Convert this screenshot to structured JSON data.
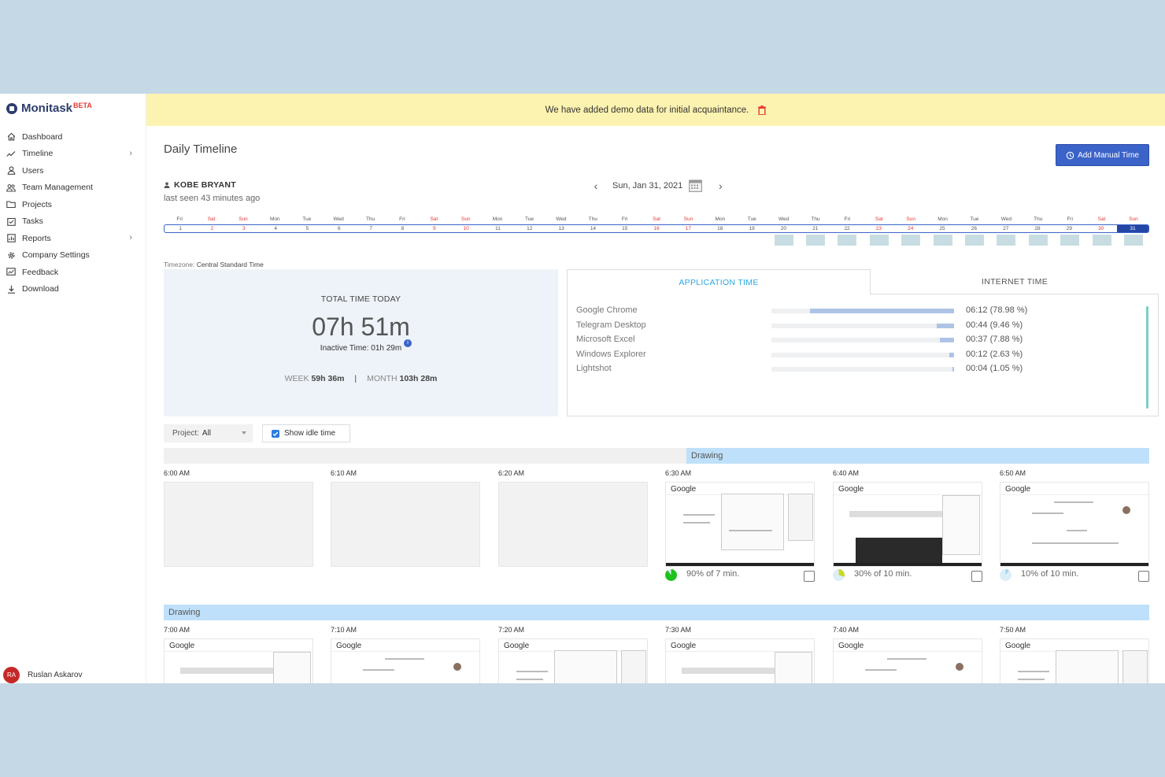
{
  "brand": {
    "name": "Monitask",
    "badge": "BETA"
  },
  "sidebar": {
    "items": [
      {
        "label": "Dashboard",
        "icon": "home-icon",
        "has_chevron": false
      },
      {
        "label": "Timeline",
        "icon": "trend-icon",
        "has_chevron": true
      },
      {
        "label": "Users",
        "icon": "user-icon",
        "has_chevron": false
      },
      {
        "label": "Team Management",
        "icon": "team-icon",
        "has_chevron": false
      },
      {
        "label": "Projects",
        "icon": "folder-icon",
        "has_chevron": false
      },
      {
        "label": "Tasks",
        "icon": "tasks-icon",
        "has_chevron": false
      },
      {
        "label": "Reports",
        "icon": "reports-icon",
        "has_chevron": true
      },
      {
        "label": "Company Settings",
        "icon": "gear-icon",
        "has_chevron": false
      },
      {
        "label": "Feedback",
        "icon": "feedback-icon",
        "has_chevron": false
      },
      {
        "label": "Download",
        "icon": "download-icon",
        "has_chevron": false
      }
    ],
    "user": {
      "initials": "RA",
      "name": "Ruslan Askarov"
    }
  },
  "banner": {
    "text": "We have added demo data for initial acquaintance."
  },
  "header": {
    "title": "Daily Timeline",
    "add_manual_label": "Add Manual Time"
  },
  "employee": {
    "name": "KOBE BRYANT",
    "last_seen": "last seen 43 minutes ago"
  },
  "date_nav": {
    "label": "Sun, Jan 31, 2021"
  },
  "days": [
    {
      "dow": "Fri",
      "num": "1",
      "weekend": false,
      "active": false
    },
    {
      "dow": "Sat",
      "num": "2",
      "weekend": true,
      "active": false
    },
    {
      "dow": "Sun",
      "num": "3",
      "weekend": true,
      "active": false
    },
    {
      "dow": "Mon",
      "num": "4",
      "weekend": false,
      "active": false
    },
    {
      "dow": "Tue",
      "num": "5",
      "weekend": false,
      "active": false
    },
    {
      "dow": "Wed",
      "num": "6",
      "weekend": false,
      "active": false
    },
    {
      "dow": "Thu",
      "num": "7",
      "weekend": false,
      "active": false
    },
    {
      "dow": "Fri",
      "num": "8",
      "weekend": false,
      "active": false
    },
    {
      "dow": "Sat",
      "num": "9",
      "weekend": true,
      "active": false
    },
    {
      "dow": "Sun",
      "num": "10",
      "weekend": true,
      "active": false
    },
    {
      "dow": "Mon",
      "num": "11",
      "weekend": false,
      "active": false
    },
    {
      "dow": "Tue",
      "num": "12",
      "weekend": false,
      "active": false
    },
    {
      "dow": "Wed",
      "num": "13",
      "weekend": false,
      "active": false
    },
    {
      "dow": "Thu",
      "num": "14",
      "weekend": false,
      "active": false
    },
    {
      "dow": "Fri",
      "num": "15",
      "weekend": false,
      "active": false
    },
    {
      "dow": "Sat",
      "num": "16",
      "weekend": true,
      "active": false
    },
    {
      "dow": "Sun",
      "num": "17",
      "weekend": true,
      "active": false
    },
    {
      "dow": "Mon",
      "num": "18",
      "weekend": false,
      "active": false
    },
    {
      "dow": "Tue",
      "num": "19",
      "weekend": false,
      "active": false
    },
    {
      "dow": "Wed",
      "num": "20",
      "weekend": false,
      "active": true
    },
    {
      "dow": "Thu",
      "num": "21",
      "weekend": false,
      "active": true
    },
    {
      "dow": "Fri",
      "num": "22",
      "weekend": false,
      "active": true
    },
    {
      "dow": "Sat",
      "num": "23",
      "weekend": true,
      "active": true
    },
    {
      "dow": "Sun",
      "num": "24",
      "weekend": true,
      "active": true
    },
    {
      "dow": "Mon",
      "num": "25",
      "weekend": false,
      "active": true
    },
    {
      "dow": "Tue",
      "num": "26",
      "weekend": false,
      "active": true
    },
    {
      "dow": "Wed",
      "num": "27",
      "weekend": false,
      "active": true
    },
    {
      "dow": "Thu",
      "num": "28",
      "weekend": false,
      "active": true
    },
    {
      "dow": "Fri",
      "num": "29",
      "weekend": false,
      "active": true
    },
    {
      "dow": "Sat",
      "num": "30",
      "weekend": true,
      "active": true
    },
    {
      "dow": "Sun",
      "num": "31",
      "weekend": true,
      "active": true,
      "selected": true
    }
  ],
  "timezone": {
    "label": "Timezone:",
    "value": "Central Standard Time"
  },
  "total": {
    "label": "TOTAL TIME TODAY",
    "value": "07h 51m",
    "inactive_label": "Inactive Time:",
    "inactive_value": "01h 29m",
    "week_label": "WEEK",
    "week_value": "59h 36m",
    "separator": "|",
    "month_label": "MONTH",
    "month_value": "103h 28m"
  },
  "app_panel": {
    "tabs": [
      "APPLICATION TIME",
      "INTERNET TIME"
    ],
    "apps": [
      {
        "name": "Google Chrome",
        "time": "06:12",
        "pct": "(78.98 %)",
        "share": 78.98
      },
      {
        "name": "Telegram Desktop",
        "time": "00:44",
        "pct": "(9.46 %)",
        "share": 9.46
      },
      {
        "name": "Microsoft Excel",
        "time": "00:37",
        "pct": "(7.88 %)",
        "share": 7.88
      },
      {
        "name": "Windows Explorer",
        "time": "00:12",
        "pct": "(2.63 %)",
        "share": 2.63
      },
      {
        "name": "Lightshot",
        "time": "00:04",
        "pct": "(1.05 %)",
        "share": 1.05
      }
    ]
  },
  "filters": {
    "project_label": "Project:",
    "project_value": "All",
    "idle_label": "Show idle time"
  },
  "hour_rows": [
    {
      "activity_label": "Drawing",
      "slots": [
        {
          "time": "6:00 AM",
          "has_shot": false
        },
        {
          "time": "6:10 AM",
          "has_shot": false
        },
        {
          "time": "6:20 AM",
          "has_shot": false
        },
        {
          "time": "6:30 AM",
          "has_shot": true,
          "logo": "Google",
          "activity": "90% of 7 min.",
          "share": 0.9
        },
        {
          "time": "6:40 AM",
          "has_shot": true,
          "logo": "Google",
          "activity": "30% of 10 min.",
          "share": 0.3
        },
        {
          "time": "6:50 AM",
          "has_shot": true,
          "logo": "Google",
          "activity": "10% of 10 min.",
          "share": 0.1
        }
      ]
    },
    {
      "activity_label": "Drawing",
      "slots": [
        {
          "time": "7:00 AM",
          "has_shot": true,
          "logo": "Google"
        },
        {
          "time": "7:10 AM",
          "has_shot": true,
          "logo": "Google"
        },
        {
          "time": "7:20 AM",
          "has_shot": true,
          "logo": "Google"
        },
        {
          "time": "7:30 AM",
          "has_shot": true,
          "logo": "Google"
        },
        {
          "time": "7:40 AM",
          "has_shot": true,
          "logo": "Google"
        },
        {
          "time": "7:50 AM",
          "has_shot": true,
          "logo": "Google"
        }
      ]
    }
  ],
  "colors": {
    "accent": "#3b63c8",
    "active_tab": "#29a8e0",
    "weekend": "#e53935",
    "activity_high": "#1ec21e",
    "activity_mid": "#c8d92a",
    "activity_low": "#9fd4ee"
  }
}
